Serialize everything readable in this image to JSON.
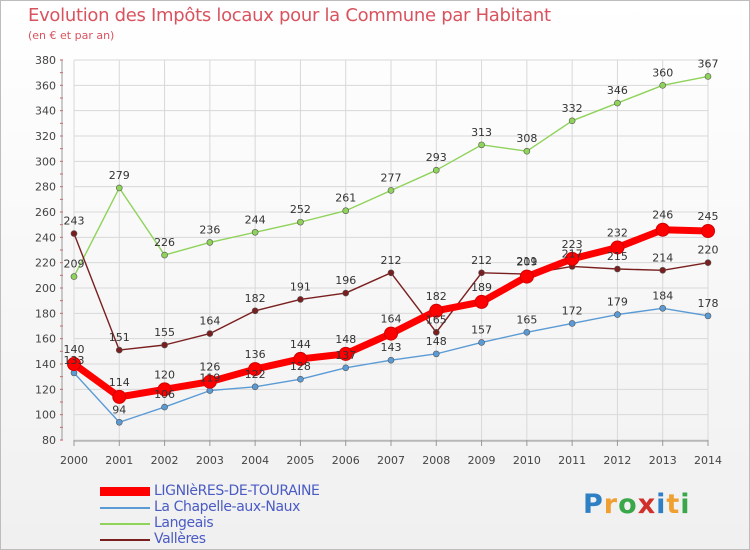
{
  "title": "Evolution des Impôts locaux pour la Commune par Habitant",
  "subtitle": "(en € et par an)",
  "brand": {
    "letters": [
      "P",
      "r",
      "o",
      "x",
      "i",
      "t",
      "i"
    ],
    "colors": [
      "#2f7fc4",
      "#f0a030",
      "#3aa84a",
      "#d0302a",
      "#2f7fc4",
      "#f0a030",
      "#3aa84a"
    ]
  },
  "chart_data": {
    "type": "line",
    "x": [
      2000,
      2001,
      2002,
      2003,
      2004,
      2005,
      2006,
      2007,
      2008,
      2009,
      2010,
      2011,
      2012,
      2013,
      2014
    ],
    "ylim": [
      80,
      380
    ],
    "yticks": [
      80,
      100,
      120,
      140,
      160,
      180,
      200,
      220,
      240,
      260,
      280,
      300,
      320,
      340,
      360,
      380
    ],
    "grid": true,
    "legend_position": "bottom-left",
    "series": [
      {
        "name": "LIGNIèRES-DE-TOURAINE",
        "color": "#ff0000",
        "values": [
          140,
          114,
          120,
          126,
          136,
          144,
          148,
          164,
          182,
          189,
          209,
          223,
          232,
          246,
          245
        ]
      },
      {
        "name": "La Chapelle-aux-Naux",
        "color": "#5b9bd5",
        "values": [
          133,
          94,
          106,
          119,
          122,
          128,
          137,
          143,
          148,
          157,
          165,
          172,
          179,
          184,
          178
        ]
      },
      {
        "name": "Langeais",
        "color": "#8fd35a",
        "values": [
          209,
          279,
          226,
          236,
          244,
          252,
          261,
          277,
          293,
          313,
          308,
          332,
          346,
          360,
          367
        ]
      },
      {
        "name": "Vallères",
        "color": "#7a1f1f",
        "values": [
          243,
          151,
          155,
          164,
          182,
          191,
          196,
          212,
          165,
          212,
          211,
          217,
          215,
          214,
          220
        ]
      }
    ]
  }
}
